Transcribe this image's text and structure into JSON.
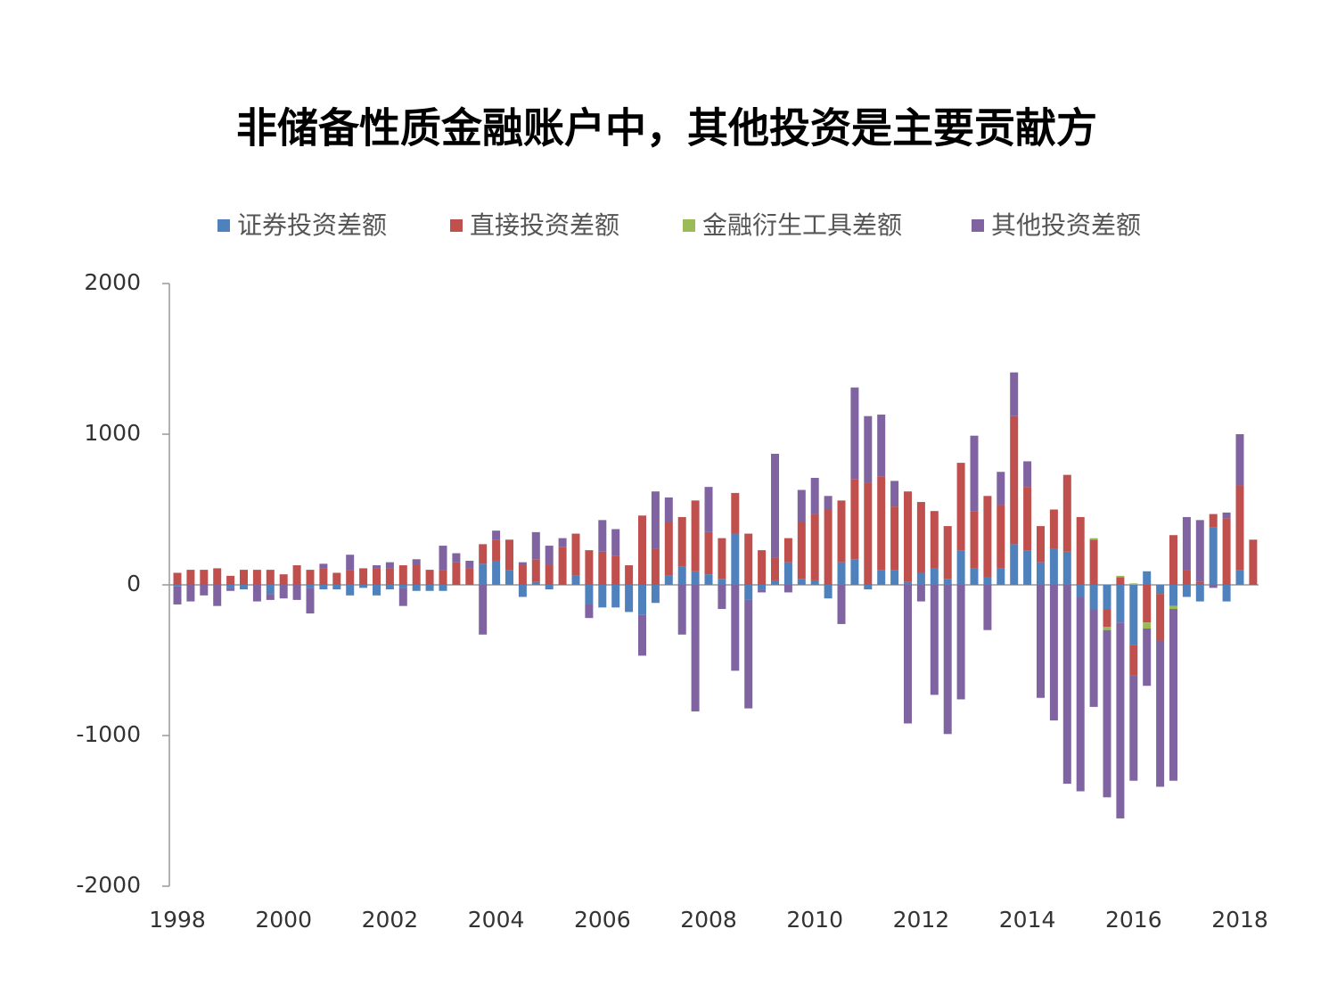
{
  "chart_data": {
    "type": "stacked_bar",
    "title": "非储备性质金融账户中，其他投资是主要贡献方",
    "categories": [
      "1998",
      null,
      null,
      null,
      null,
      null,
      null,
      null,
      "2000",
      null,
      null,
      null,
      null,
      null,
      null,
      null,
      "2002",
      null,
      null,
      null,
      null,
      null,
      null,
      null,
      "2004",
      null,
      null,
      null,
      null,
      null,
      null,
      null,
      "2006",
      null,
      null,
      null,
      null,
      null,
      null,
      null,
      "2008",
      null,
      null,
      null,
      null,
      null,
      null,
      null,
      "2010",
      null,
      null,
      null,
      null,
      null,
      null,
      null,
      "2012",
      null,
      null,
      null,
      null,
      null,
      null,
      null,
      "2014",
      null,
      null,
      null,
      null,
      null,
      null,
      null,
      "2016",
      null,
      null,
      null,
      null,
      null,
      null,
      null,
      "2018",
      null
    ],
    "series": [
      {
        "name": "证券投资差额",
        "color": "#4f81bd",
        "values": [
          -10,
          0,
          0,
          0,
          -20,
          -30,
          0,
          -60,
          0,
          0,
          -20,
          -30,
          -30,
          -70,
          -20,
          -70,
          -30,
          -20,
          -40,
          -40,
          -40,
          0,
          0,
          140,
          160,
          100,
          -80,
          20,
          -30,
          0,
          60,
          -130,
          -150,
          -150,
          -180,
          -200,
          -120,
          60,
          120,
          90,
          70,
          40,
          340,
          -100,
          -30,
          30,
          150,
          40,
          30,
          -90,
          150,
          170,
          -30,
          100,
          100,
          20,
          80,
          110,
          40,
          230,
          110,
          50,
          110,
          270,
          230,
          150,
          240,
          220,
          -80,
          -160,
          -160,
          -250,
          -400,
          90,
          -60,
          -140,
          -80,
          -110,
          380,
          -110,
          100,
          0
        ]
      },
      {
        "name": "直接投资差额",
        "color": "#c0504d",
        "values": [
          80,
          100,
          100,
          110,
          60,
          100,
          100,
          100,
          70,
          130,
          100,
          110,
          80,
          100,
          110,
          110,
          110,
          130,
          130,
          100,
          100,
          150,
          110,
          130,
          140,
          200,
          130,
          150,
          130,
          250,
          280,
          230,
          220,
          190,
          130,
          460,
          240,
          360,
          330,
          470,
          280,
          270,
          270,
          340,
          230,
          150,
          160,
          380,
          440,
          500,
          410,
          530,
          680,
          620,
          420,
          600,
          470,
          380,
          350,
          580,
          380,
          540,
          420,
          850,
          420,
          240,
          260,
          510,
          450,
          300,
          -120,
          50,
          -200,
          -250,
          -310,
          330,
          100,
          20,
          90,
          440,
          560,
          300
        ]
      },
      {
        "name": "金融衍生工具差额",
        "color": "#9bbb59",
        "values": [
          0,
          0,
          0,
          0,
          0,
          0,
          0,
          0,
          0,
          0,
          0,
          0,
          0,
          0,
          0,
          0,
          0,
          0,
          0,
          0,
          0,
          0,
          0,
          0,
          0,
          0,
          0,
          0,
          0,
          0,
          0,
          0,
          0,
          0,
          0,
          0,
          0,
          0,
          0,
          0,
          0,
          0,
          0,
          0,
          0,
          0,
          0,
          0,
          0,
          0,
          0,
          0,
          0,
          0,
          0,
          0,
          0,
          0,
          0,
          0,
          0,
          0,
          0,
          0,
          0,
          0,
          0,
          0,
          0,
          10,
          -20,
          10,
          10,
          -40,
          0,
          -20,
          0,
          0,
          0,
          0,
          0,
          0
        ]
      },
      {
        "name": "其他投资差额",
        "color": "#8064a2",
        "values": [
          -120,
          -110,
          -70,
          -140,
          -20,
          0,
          -110,
          -40,
          -90,
          -100,
          -170,
          30,
          0,
          100,
          0,
          20,
          40,
          -120,
          40,
          0,
          160,
          60,
          50,
          -330,
          60,
          0,
          20,
          180,
          130,
          60,
          0,
          -90,
          210,
          180,
          0,
          -270,
          380,
          160,
          -330,
          -840,
          300,
          -160,
          -570,
          -720,
          -20,
          690,
          -50,
          210,
          240,
          90,
          -260,
          610,
          440,
          410,
          170,
          -920,
          -110,
          -730,
          -990,
          -760,
          500,
          -300,
          220,
          290,
          170,
          -750,
          -900,
          -1320,
          -1290,
          -650,
          -1110,
          -1300,
          -700,
          -380,
          -970,
          -1140,
          350,
          410,
          -20,
          40,
          340,
          0
        ]
      }
    ],
    "ylim": [
      -2000,
      2000
    ],
    "yticks": [
      -2000,
      -1000,
      0,
      1000,
      2000
    ],
    "grid": false,
    "legend": "top"
  }
}
